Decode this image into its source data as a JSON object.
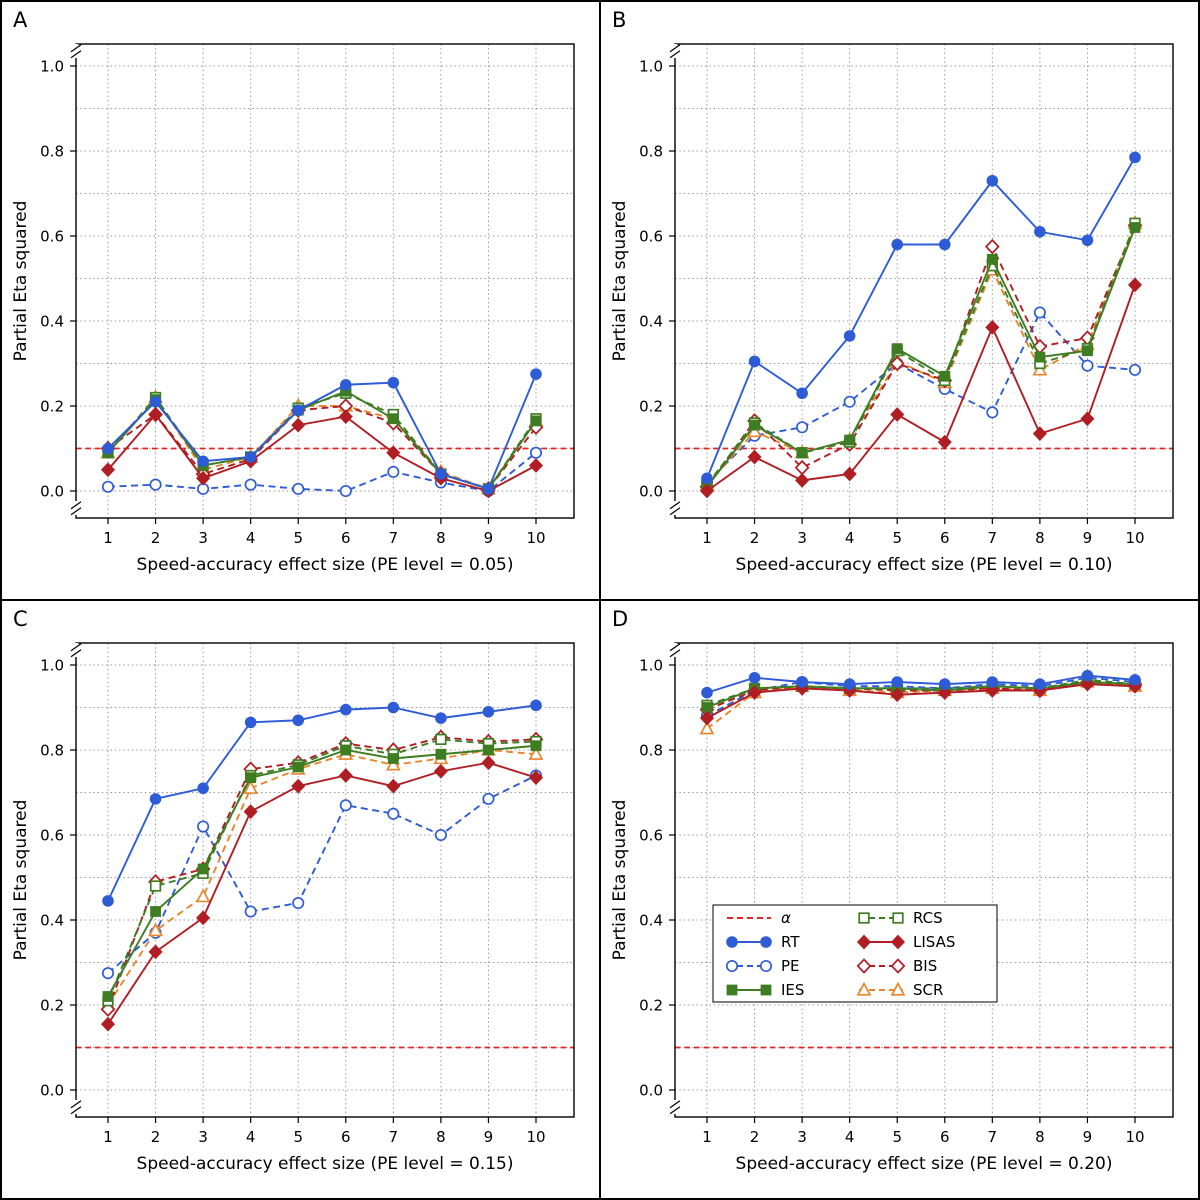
{
  "figure": {
    "background": "#ffffff",
    "border_color": "#000000",
    "grid_color": "#999999",
    "draw_order": [
      "PE",
      "SCR",
      "BIS",
      "RCS",
      "IES",
      "LISAS",
      "RT"
    ]
  },
  "series_styles": {
    "RT": {
      "color": "#2e5cd6",
      "dash": "solid",
      "marker": "circle",
      "fill": "filled"
    },
    "PE": {
      "color": "#2e5cd6",
      "dash": "dashed",
      "marker": "circle",
      "fill": "open"
    },
    "IES": {
      "color": "#3f7d23",
      "dash": "solid",
      "marker": "square",
      "fill": "filled"
    },
    "RCS": {
      "color": "#3f7d23",
      "dash": "dashed",
      "marker": "square",
      "fill": "open"
    },
    "LISAS": {
      "color": "#b01e23",
      "dash": "solid",
      "marker": "diamond",
      "fill": "filled"
    },
    "BIS": {
      "color": "#b01e23",
      "dash": "dashed",
      "marker": "diamond",
      "fill": "open"
    },
    "SCR": {
      "color": "#e9862d",
      "dash": "dashed",
      "marker": "triangle",
      "fill": "open"
    }
  },
  "alpha_style": {
    "color": "#e52420",
    "dash": "dashed"
  },
  "legend": {
    "position": "panel-D-center-left",
    "entries": [
      {
        "key": "alpha",
        "label": "α"
      },
      {
        "key": "RT",
        "label": "RT"
      },
      {
        "key": "PE",
        "label": "PE"
      },
      {
        "key": "IES",
        "label": "IES"
      },
      {
        "key": "RCS",
        "label": "RCS"
      },
      {
        "key": "LISAS",
        "label": "LISAS"
      },
      {
        "key": "BIS",
        "label": "BIS"
      },
      {
        "key": "SCR",
        "label": "SCR"
      }
    ]
  },
  "chart_data": [
    {
      "type": "line",
      "panel": "A",
      "xlabel": "Speed-accuracy effect size (PE level = 0.05)",
      "ylabel": "Partial Eta squared",
      "x": [
        1,
        2,
        3,
        4,
        5,
        6,
        7,
        8,
        9,
        10
      ],
      "xtick_labels": [
        "1",
        "2",
        "3",
        "4",
        "5",
        "6",
        "7",
        "8",
        "9",
        "10"
      ],
      "yticks": [
        0.0,
        0.2,
        0.4,
        0.6,
        0.8,
        1.0
      ],
      "ytick_labels": [
        "0.0",
        "0.2",
        "0.4",
        "0.6",
        "0.8",
        "1.0"
      ],
      "ylim": [
        0,
        1.05
      ],
      "axis_break": true,
      "grid": true,
      "alpha_level": 0.1,
      "show_legend": false,
      "series": [
        {
          "name": "RT",
          "values": [
            0.1,
            0.21,
            0.07,
            0.08,
            0.19,
            0.25,
            0.255,
            0.04,
            0.005,
            0.275
          ]
        },
        {
          "name": "PE",
          "values": [
            0.01,
            0.015,
            0.005,
            0.015,
            0.005,
            0.0,
            0.045,
            0.02,
            0.0,
            0.09
          ]
        },
        {
          "name": "IES",
          "values": [
            0.09,
            0.215,
            0.06,
            0.08,
            0.19,
            0.235,
            0.17,
            0.04,
            0.005,
            0.165
          ]
        },
        {
          "name": "RCS",
          "values": [
            0.09,
            0.22,
            0.06,
            0.08,
            0.195,
            0.23,
            0.18,
            0.04,
            0.005,
            0.17
          ]
        },
        {
          "name": "LISAS",
          "values": [
            0.05,
            0.18,
            0.03,
            0.07,
            0.155,
            0.175,
            0.09,
            0.03,
            0.0,
            0.06
          ]
        },
        {
          "name": "BIS",
          "values": [
            0.1,
            0.18,
            0.04,
            0.075,
            0.19,
            0.2,
            0.16,
            0.04,
            0.005,
            0.15
          ]
        },
        {
          "name": "SCR",
          "values": [
            0.09,
            0.22,
            0.05,
            0.08,
            0.2,
            0.2,
            0.17,
            0.045,
            0.005,
            0.165
          ]
        }
      ]
    },
    {
      "type": "line",
      "panel": "B",
      "xlabel": "Speed-accuracy effect size (PE level = 0.10)",
      "ylabel": "Partial Eta squared",
      "x": [
        1,
        2,
        3,
        4,
        5,
        6,
        7,
        8,
        9,
        10
      ],
      "xtick_labels": [
        "1",
        "2",
        "3",
        "4",
        "5",
        "6",
        "7",
        "8",
        "9",
        "10"
      ],
      "yticks": [
        0.0,
        0.2,
        0.4,
        0.6,
        0.8,
        1.0
      ],
      "ytick_labels": [
        "0.0",
        "0.2",
        "0.4",
        "0.6",
        "0.8",
        "1.0"
      ],
      "ylim": [
        0,
        1.05
      ],
      "axis_break": true,
      "grid": true,
      "alpha_level": 0.1,
      "show_legend": false,
      "series": [
        {
          "name": "RT",
          "values": [
            0.03,
            0.305,
            0.23,
            0.365,
            0.58,
            0.58,
            0.73,
            0.61,
            0.59,
            0.785
          ]
        },
        {
          "name": "PE",
          "values": [
            0.02,
            0.13,
            0.15,
            0.21,
            0.3,
            0.24,
            0.185,
            0.42,
            0.295,
            0.285
          ]
        },
        {
          "name": "IES",
          "values": [
            0.01,
            0.155,
            0.09,
            0.12,
            0.335,
            0.27,
            0.545,
            0.315,
            0.33,
            0.62
          ]
        },
        {
          "name": "RCS",
          "values": [
            0.015,
            0.16,
            0.09,
            0.115,
            0.33,
            0.26,
            0.53,
            0.3,
            0.335,
            0.63
          ]
        },
        {
          "name": "LISAS",
          "values": [
            0.0,
            0.08,
            0.025,
            0.04,
            0.18,
            0.115,
            0.385,
            0.135,
            0.17,
            0.485
          ]
        },
        {
          "name": "BIS",
          "values": [
            0.01,
            0.165,
            0.055,
            0.11,
            0.3,
            0.26,
            0.575,
            0.34,
            0.36,
            0.625
          ]
        },
        {
          "name": "SCR",
          "values": [
            0.015,
            0.14,
            0.09,
            0.12,
            0.305,
            0.255,
            0.52,
            0.285,
            0.345,
            0.63
          ]
        }
      ]
    },
    {
      "type": "line",
      "panel": "C",
      "xlabel": "Speed-accuracy effect size (PE level = 0.15)",
      "ylabel": "Partial Eta squared",
      "x": [
        1,
        2,
        3,
        4,
        5,
        6,
        7,
        8,
        9,
        10
      ],
      "xtick_labels": [
        "1",
        "2",
        "3",
        "4",
        "5",
        "6",
        "7",
        "8",
        "9",
        "10"
      ],
      "yticks": [
        0.0,
        0.2,
        0.4,
        0.6,
        0.8,
        1.0
      ],
      "ytick_labels": [
        "0.0",
        "0.2",
        "0.4",
        "0.6",
        "0.8",
        "1.0"
      ],
      "ylim": [
        0,
        1.05
      ],
      "axis_break": true,
      "grid": true,
      "alpha_level": 0.1,
      "show_legend": false,
      "series": [
        {
          "name": "RT",
          "values": [
            0.445,
            0.685,
            0.71,
            0.865,
            0.87,
            0.895,
            0.9,
            0.875,
            0.89,
            0.905
          ]
        },
        {
          "name": "PE",
          "values": [
            0.275,
            0.37,
            0.62,
            0.42,
            0.44,
            0.67,
            0.65,
            0.6,
            0.685,
            0.74
          ]
        },
        {
          "name": "IES",
          "values": [
            0.22,
            0.42,
            0.52,
            0.735,
            0.76,
            0.8,
            0.78,
            0.79,
            0.8,
            0.81
          ]
        },
        {
          "name": "RCS",
          "values": [
            0.21,
            0.48,
            0.51,
            0.74,
            0.765,
            0.81,
            0.79,
            0.825,
            0.815,
            0.82
          ]
        },
        {
          "name": "LISAS",
          "values": [
            0.155,
            0.325,
            0.405,
            0.655,
            0.715,
            0.74,
            0.715,
            0.75,
            0.77,
            0.735
          ]
        },
        {
          "name": "BIS",
          "values": [
            0.19,
            0.49,
            0.52,
            0.755,
            0.77,
            0.815,
            0.8,
            0.83,
            0.82,
            0.825
          ]
        },
        {
          "name": "SCR",
          "values": [
            0.2,
            0.375,
            0.455,
            0.71,
            0.755,
            0.79,
            0.765,
            0.78,
            0.8,
            0.79
          ]
        }
      ]
    },
    {
      "type": "line",
      "panel": "D",
      "xlabel": "Speed-accuracy effect size (PE level = 0.20)",
      "ylabel": "Partial Eta squared",
      "x": [
        1,
        2,
        3,
        4,
        5,
        6,
        7,
        8,
        9,
        10
      ],
      "xtick_labels": [
        "1",
        "2",
        "3",
        "4",
        "5",
        "6",
        "7",
        "8",
        "9",
        "10"
      ],
      "yticks": [
        0.0,
        0.2,
        0.4,
        0.6,
        0.8,
        1.0
      ],
      "ytick_labels": [
        "0.0",
        "0.2",
        "0.4",
        "0.6",
        "0.8",
        "1.0"
      ],
      "ylim": [
        0,
        1.05
      ],
      "axis_break": true,
      "grid": true,
      "alpha_level": 0.1,
      "show_legend": true,
      "series": [
        {
          "name": "RT",
          "values": [
            0.935,
            0.97,
            0.96,
            0.955,
            0.96,
            0.955,
            0.96,
            0.955,
            0.975,
            0.965
          ]
        },
        {
          "name": "PE",
          "values": [
            0.88,
            0.94,
            0.96,
            0.95,
            0.95,
            0.945,
            0.955,
            0.95,
            0.97,
            0.96
          ]
        },
        {
          "name": "IES",
          "values": [
            0.9,
            0.945,
            0.95,
            0.945,
            0.945,
            0.94,
            0.95,
            0.945,
            0.96,
            0.955
          ]
        },
        {
          "name": "RCS",
          "values": [
            0.905,
            0.945,
            0.95,
            0.945,
            0.945,
            0.945,
            0.95,
            0.945,
            0.965,
            0.955
          ]
        },
        {
          "name": "LISAS",
          "values": [
            0.875,
            0.935,
            0.945,
            0.94,
            0.93,
            0.935,
            0.94,
            0.94,
            0.955,
            0.95
          ]
        },
        {
          "name": "BIS",
          "values": [
            0.895,
            0.94,
            0.95,
            0.945,
            0.94,
            0.94,
            0.945,
            0.94,
            0.96,
            0.955
          ]
        },
        {
          "name": "SCR",
          "values": [
            0.85,
            0.935,
            0.95,
            0.94,
            0.935,
            0.94,
            0.945,
            0.94,
            0.96,
            0.95
          ]
        }
      ]
    }
  ]
}
